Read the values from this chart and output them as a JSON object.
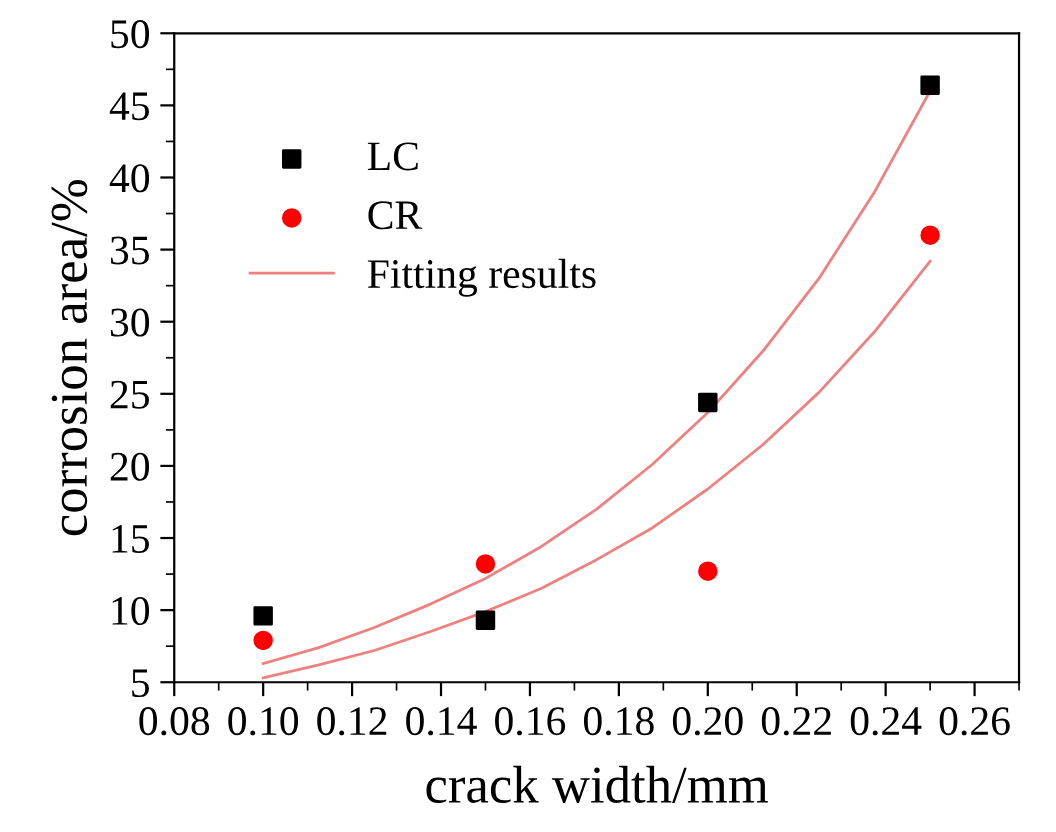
{
  "chart_data": {
    "type": "scatter",
    "xlabel": "crack width/mm",
    "ylabel": "corrosion area/%",
    "xlim": [
      0.08,
      0.27
    ],
    "xticks": [
      {
        "value": 0.08,
        "label": "0.08"
      },
      {
        "value": 0.1,
        "label": "0.10"
      },
      {
        "value": 0.12,
        "label": "0.12"
      },
      {
        "value": 0.14,
        "label": "0.14"
      },
      {
        "value": 0.16,
        "label": "0.16"
      },
      {
        "value": 0.18,
        "label": "0.18"
      },
      {
        "value": 0.2,
        "label": "0.20"
      },
      {
        "value": 0.22,
        "label": "0.22"
      },
      {
        "value": 0.24,
        "label": "0.24"
      },
      {
        "value": 0.26,
        "label": "0.26"
      }
    ],
    "ylim": [
      5,
      50
    ],
    "yticks": [
      5,
      10,
      15,
      20,
      25,
      30,
      35,
      40,
      45,
      50
    ],
    "grid": false,
    "legend": "top left",
    "series": [
      {
        "name": "LC",
        "marker": "square",
        "color": "#000000",
        "x": [
          0.1,
          0.15,
          0.2,
          0.25
        ],
        "values": [
          9.6,
          9.3,
          24.4,
          46.4
        ]
      },
      {
        "name": "CR",
        "marker": "circle",
        "color": "#ff0000",
        "x": [
          0.1,
          0.15,
          0.2,
          0.25
        ],
        "values": [
          7.9,
          13.2,
          12.7,
          36.0
        ]
      },
      {
        "name": "Fitting results",
        "type": "line",
        "marker": "none",
        "line_style": "solid",
        "color": "#f08080",
        "x": [
          0.1,
          0.1125,
          0.125,
          0.1375,
          0.15,
          0.1625,
          0.175,
          0.1875,
          0.2,
          0.2125,
          0.225,
          0.2375,
          0.25
        ],
        "values": [
          6.3,
          7.4,
          8.8,
          10.4,
          12.2,
          14.4,
          17.0,
          20.1,
          23.7,
          28.0,
          33.0,
          39.0,
          46.0
        ]
      },
      {
        "type": "line",
        "marker": "none",
        "line_style": "solid",
        "color": "#f08080",
        "x": [
          0.1,
          0.1125,
          0.125,
          0.1375,
          0.15,
          0.1625,
          0.175,
          0.1875,
          0.2,
          0.2125,
          0.225,
          0.2375,
          0.25
        ],
        "values": [
          5.3,
          6.2,
          7.2,
          8.5,
          9.9,
          11.5,
          13.5,
          15.7,
          18.4,
          21.5,
          25.1,
          29.3,
          34.2
        ]
      }
    ]
  }
}
